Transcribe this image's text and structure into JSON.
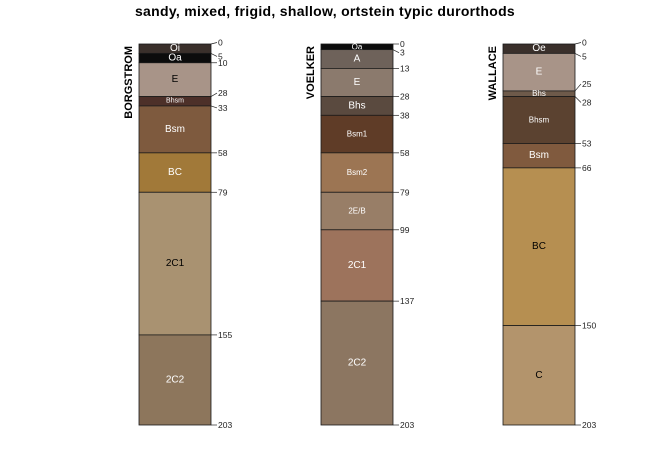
{
  "title": "sandy, mixed, frigid, shallow, ortstein typic durorthods",
  "profiles": [
    {
      "name": "BORGSTROM",
      "horizons": [
        {
          "name": "Oi",
          "top": 0,
          "bottom": 5,
          "color": "#3a302b",
          "text": "#ffffff"
        },
        {
          "name": "Oa",
          "top": 5,
          "bottom": 10,
          "color": "#0c0c0c",
          "text": "#ffffff"
        },
        {
          "name": "E",
          "top": 10,
          "bottom": 28,
          "color": "#a89488",
          "text": "#000000"
        },
        {
          "name": "Bhsm",
          "top": 28,
          "bottom": 33,
          "color": "#4d3029",
          "text": "#ffffff"
        },
        {
          "name": "Bsm",
          "top": 33,
          "bottom": 58,
          "color": "#7e5a3e",
          "text": "#ffffff"
        },
        {
          "name": "BC",
          "top": 58,
          "bottom": 79,
          "color": "#a17939",
          "text": "#ffffff"
        },
        {
          "name": "2C1",
          "top": 79,
          "bottom": 155,
          "color": "#a99271",
          "text": "#000000"
        },
        {
          "name": "2C2",
          "top": 155,
          "bottom": 203,
          "color": "#8d765c",
          "text": "#ffffff"
        }
      ],
      "depths": [
        "0",
        "5",
        "10",
        "28",
        "33",
        "58",
        "79",
        "155",
        "203"
      ]
    },
    {
      "name": "VOELKER",
      "horizons": [
        {
          "name": "Oa",
          "top": 0,
          "bottom": 3,
          "color": "#0c0c0c",
          "text": "#ffffff"
        },
        {
          "name": "A",
          "top": 3,
          "bottom": 13,
          "color": "#6e625a",
          "text": "#ffffff"
        },
        {
          "name": "E",
          "top": 13,
          "bottom": 28,
          "color": "#8b7a6d",
          "text": "#ffffff"
        },
        {
          "name": "Bhs",
          "top": 28,
          "bottom": 38,
          "color": "#5a4a3f",
          "text": "#ffffff"
        },
        {
          "name": "Bsm1",
          "top": 38,
          "bottom": 58,
          "color": "#5f3c27",
          "text": "#ffffff"
        },
        {
          "name": "Bsm2",
          "top": 58,
          "bottom": 79,
          "color": "#9c7553",
          "text": "#ffffff"
        },
        {
          "name": "2E/B",
          "top": 79,
          "bottom": 99,
          "color": "#987e67",
          "text": "#ffffff"
        },
        {
          "name": "2C1",
          "top": 99,
          "bottom": 137,
          "color": "#9d735c",
          "text": "#ffffff"
        },
        {
          "name": "2C2",
          "top": 137,
          "bottom": 203,
          "color": "#8c7661",
          "text": "#ffffff"
        }
      ],
      "depths": [
        "0",
        "3",
        "13",
        "28",
        "38",
        "58",
        "79",
        "99",
        "137",
        "203"
      ]
    },
    {
      "name": "WALLACE",
      "horizons": [
        {
          "name": "Oe",
          "top": 0,
          "bottom": 5,
          "color": "#3a302b",
          "text": "#ffffff"
        },
        {
          "name": "E",
          "top": 5,
          "bottom": 25,
          "color": "#a89488",
          "text": "#ffffff"
        },
        {
          "name": "Bhs",
          "top": 25,
          "bottom": 28,
          "color": "#6e5a4a",
          "text": "#ffffff"
        },
        {
          "name": "Bhsm",
          "top": 28,
          "bottom": 53,
          "color": "#5b4230",
          "text": "#ffffff"
        },
        {
          "name": "Bsm",
          "top": 53,
          "bottom": 66,
          "color": "#805a3e",
          "text": "#ffffff"
        },
        {
          "name": "BC",
          "top": 66,
          "bottom": 150,
          "color": "#b68f51",
          "text": "#000000"
        },
        {
          "name": "C",
          "top": 150,
          "bottom": 203,
          "color": "#b3946c",
          "text": "#000000"
        }
      ],
      "depths": [
        "0",
        "5",
        "25",
        "28",
        "53",
        "66",
        "150",
        "203"
      ]
    }
  ]
}
